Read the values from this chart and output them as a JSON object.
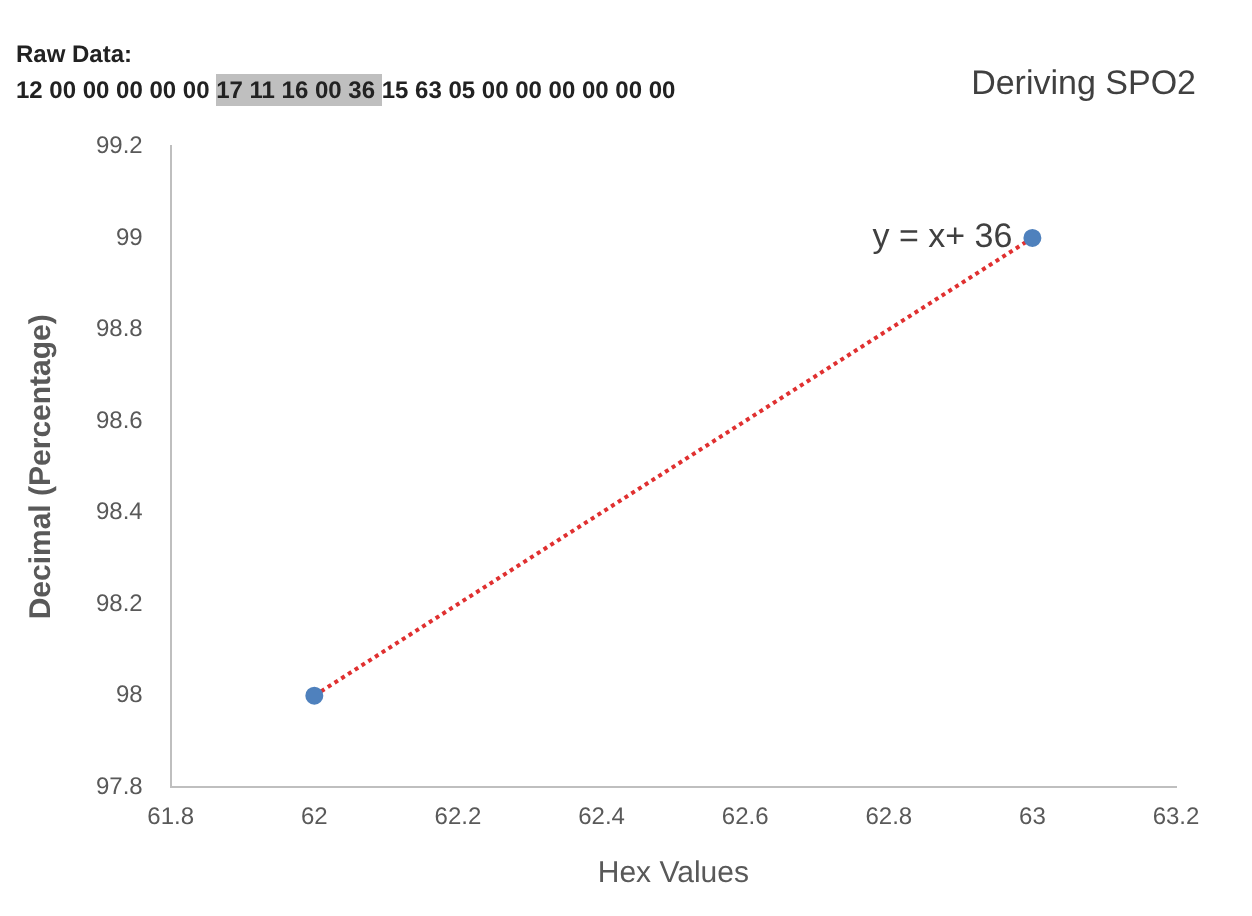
{
  "chart_data": {
    "type": "scatter",
    "title": "Deriving SPO2",
    "xlabel": "Hex Values",
    "ylabel": "Decimal (Percentage)",
    "annotations": [
      "Raw Data:",
      "12 00 00 00 00 00",
      "17 11 16 00 36",
      "15 63 05 00 00 00 00 00 00",
      {
        "text": "y = x+ 36",
        "x": 63,
        "y": 99
      }
    ],
    "x": [
      62,
      63
    ],
    "series": [
      {
        "type": "scatter",
        "color": "#4f81bd",
        "values": [
          98,
          99
        ],
        "marker": "circle"
      },
      {
        "type": "line",
        "color": "#e03030",
        "values": [
          98,
          99
        ],
        "line_style": "dotted",
        "marker": "none"
      }
    ],
    "xlim": [
      61.8,
      63.2
    ],
    "xticks": [
      61.8,
      62,
      62.2,
      62.4,
      62.6,
      62.8,
      63,
      63.2
    ],
    "ylim": [
      97.8,
      99.2
    ],
    "yticks": [
      97.8,
      98,
      98.2,
      98.4,
      98.6,
      98.8,
      99,
      99.2
    ],
    "grid": false,
    "legend": false
  }
}
